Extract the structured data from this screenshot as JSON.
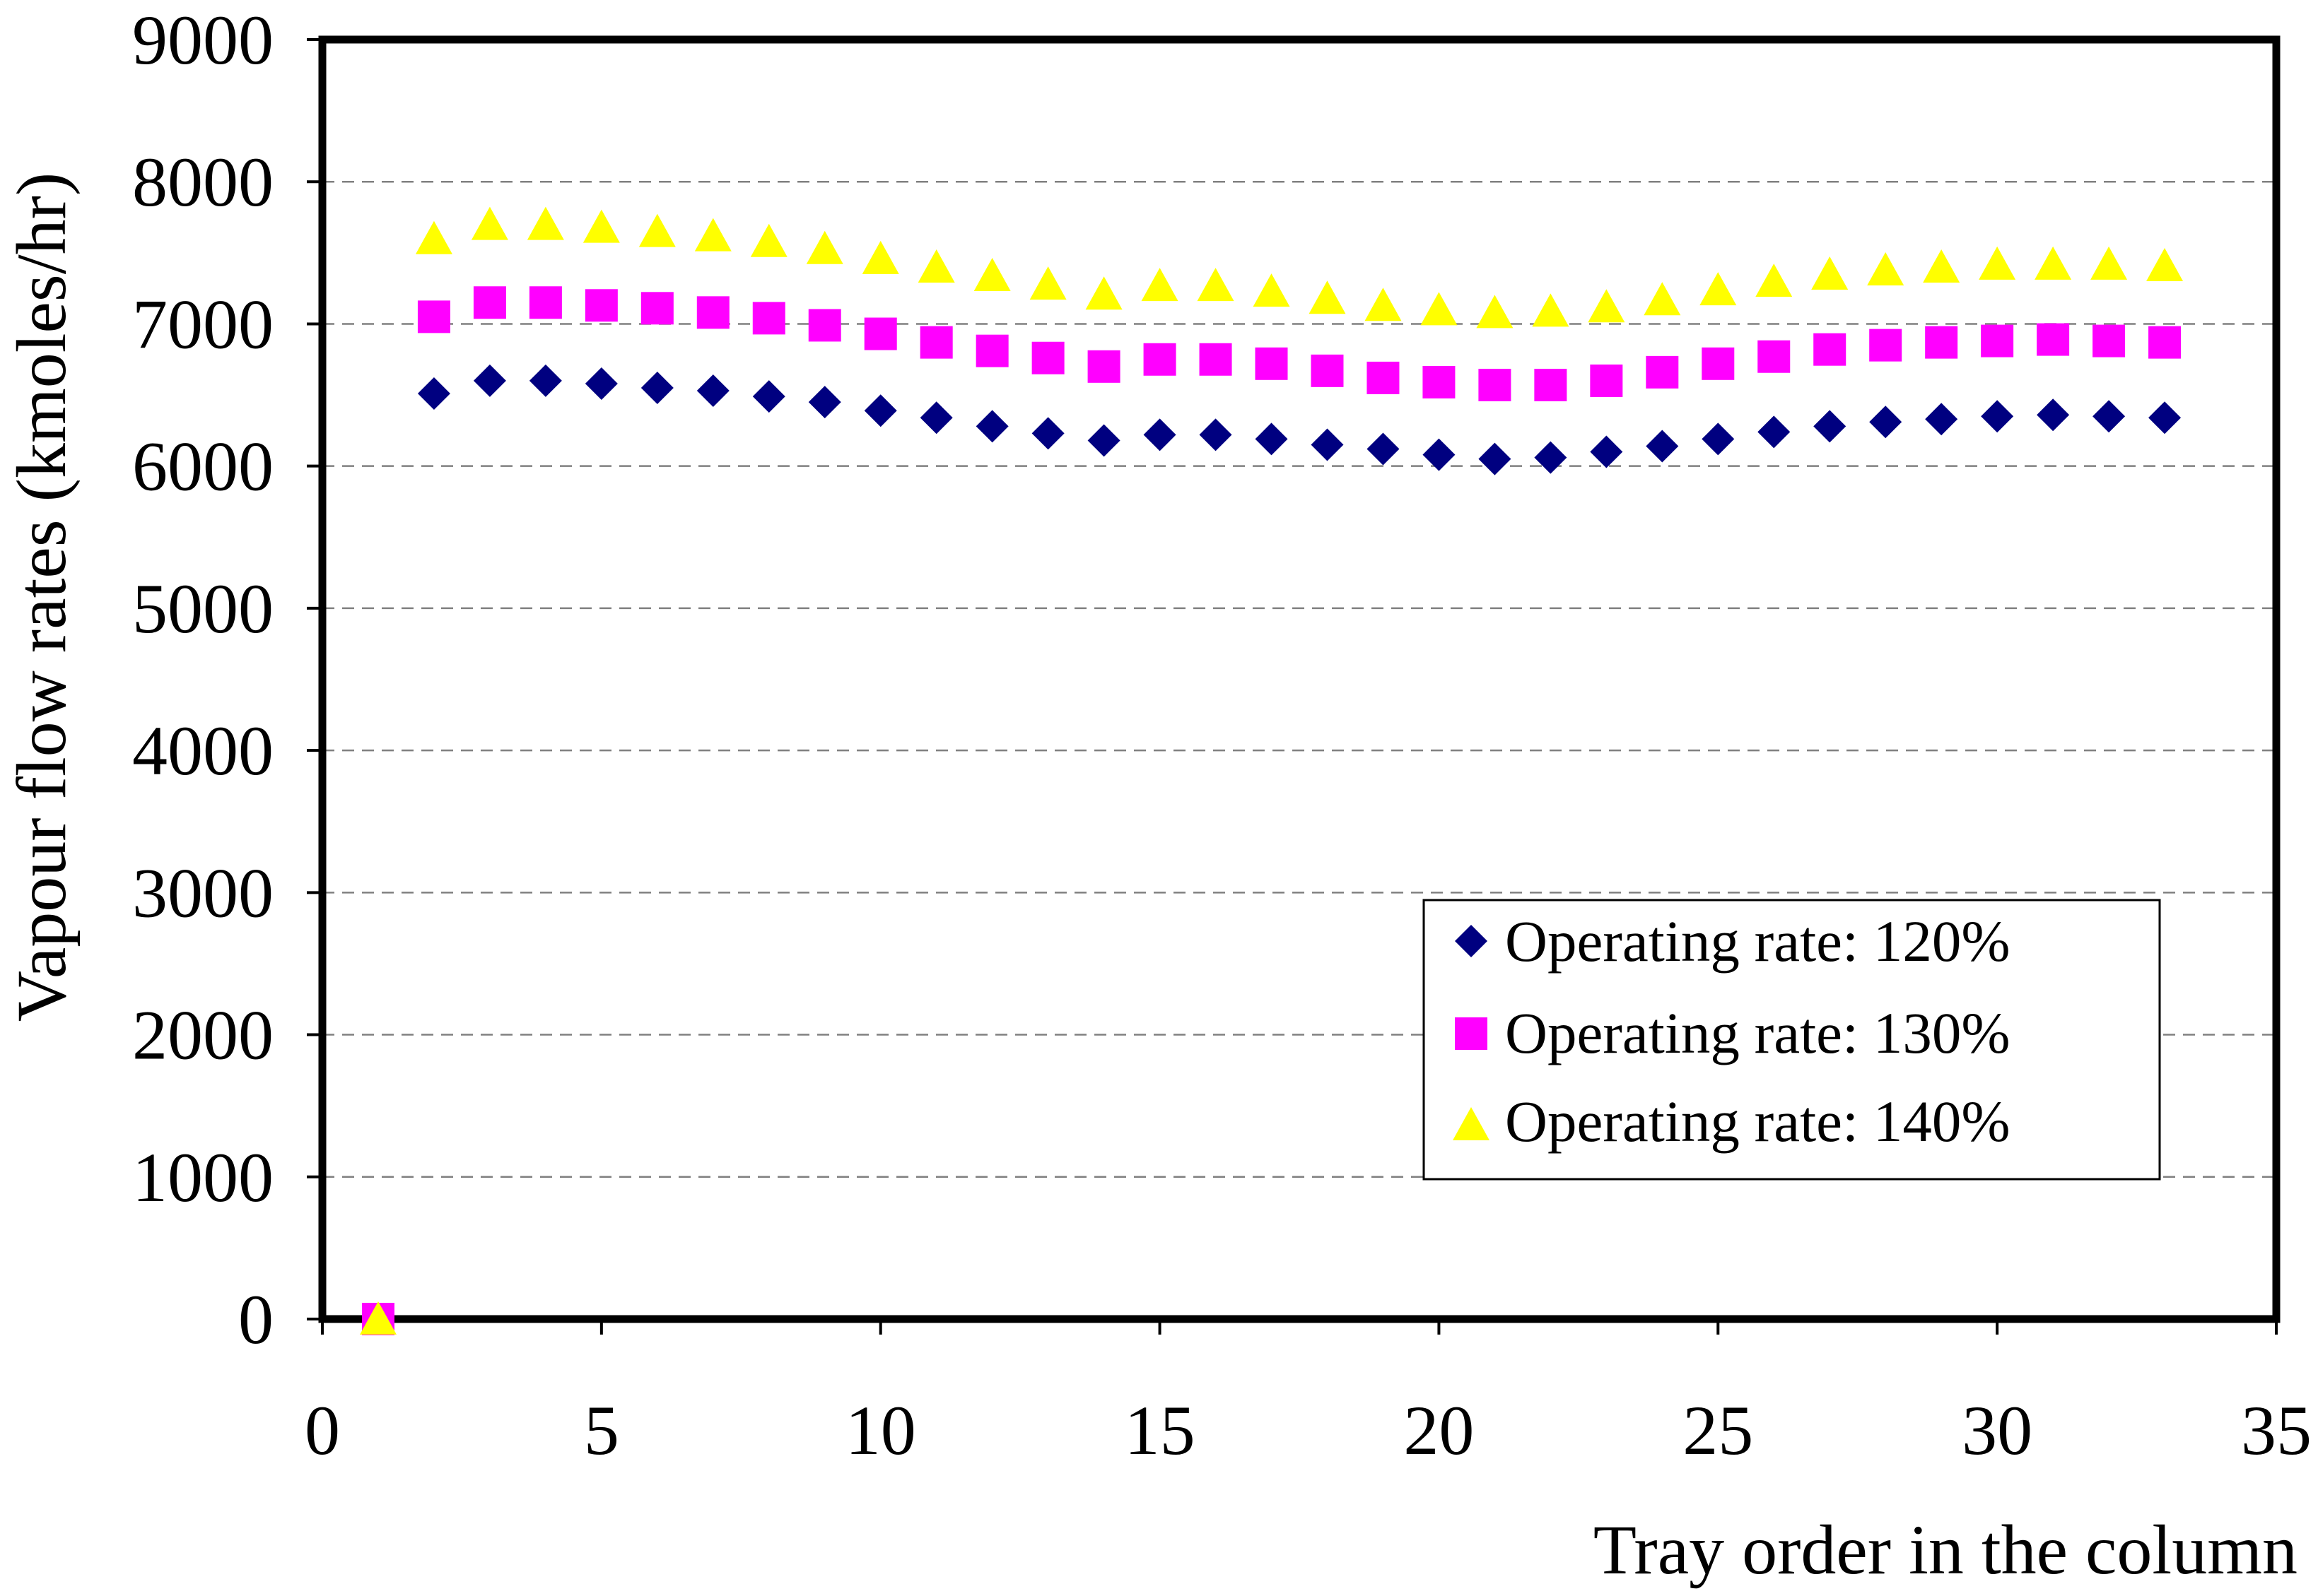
{
  "chart_data": {
    "type": "scatter",
    "title": "",
    "xlabel": "Tray order in the column",
    "ylabel": "Vapour flow rates (kmoles/hr)",
    "xlim": [
      0,
      35
    ],
    "ylim": [
      0,
      9000
    ],
    "xticks": [
      0,
      5,
      10,
      15,
      20,
      25,
      30,
      35
    ],
    "yticks": [
      0,
      1000,
      2000,
      3000,
      4000,
      5000,
      6000,
      7000,
      8000,
      9000
    ],
    "grid": true,
    "legend_position": "lower-right",
    "x": [
      1,
      2,
      3,
      4,
      5,
      6,
      7,
      8,
      9,
      10,
      11,
      12,
      13,
      14,
      15,
      16,
      17,
      18,
      19,
      20,
      21,
      22,
      23,
      24,
      25,
      26,
      27,
      28,
      29,
      30,
      31,
      32,
      33
    ],
    "series": [
      {
        "name": "Operating rate: 120%",
        "marker": "diamond",
        "color": "#000080",
        "values": [
          0,
          6510,
          6600,
          6600,
          6580,
          6550,
          6530,
          6490,
          6450,
          6390,
          6340,
          6280,
          6230,
          6180,
          6220,
          6220,
          6190,
          6150,
          6120,
          6080,
          6050,
          6060,
          6100,
          6140,
          6190,
          6240,
          6280,
          6310,
          6330,
          6350,
          6360,
          6350,
          6340
        ]
      },
      {
        "name": "Operating rate: 130%",
        "marker": "square",
        "color": "#FF00FF",
        "values": [
          0,
          7050,
          7150,
          7150,
          7130,
          7110,
          7080,
          7040,
          6990,
          6930,
          6870,
          6810,
          6760,
          6700,
          6750,
          6750,
          6720,
          6670,
          6620,
          6590,
          6570,
          6570,
          6600,
          6660,
          6720,
          6770,
          6820,
          6850,
          6870,
          6880,
          6890,
          6880,
          6870
        ]
      },
      {
        "name": "Operating rate: 140%",
        "marker": "triangle",
        "color": "#FFFF00",
        "values": [
          0,
          7600,
          7700,
          7700,
          7680,
          7650,
          7620,
          7580,
          7530,
          7460,
          7400,
          7340,
          7280,
          7210,
          7270,
          7270,
          7230,
          7180,
          7130,
          7100,
          7080,
          7090,
          7120,
          7170,
          7240,
          7300,
          7350,
          7380,
          7400,
          7420,
          7420,
          7420,
          7410
        ]
      }
    ]
  }
}
